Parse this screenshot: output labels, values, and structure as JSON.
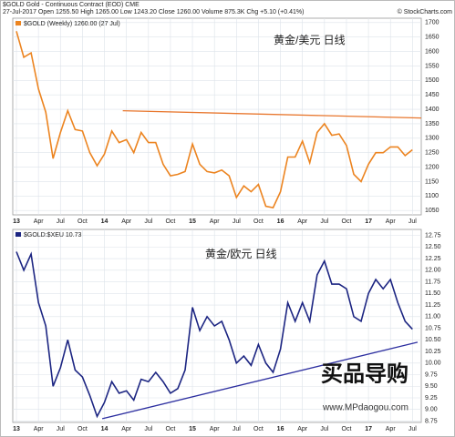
{
  "chart_data": [
    {
      "type": "line",
      "title": "$GOLD Gold - Continuous Contract (EOD) CME",
      "subtitle": "27-Jul-2017   Open 1255.50  High 1265.00  Low 1243.20  Close 1260.00  Volume 875.3K  Chg +5.10 (+0.41%)",
      "credit": "© StockCharts.com",
      "annotation": "黄金/美元   日线",
      "grid": true,
      "x": [
        0,
        1,
        2,
        3,
        4,
        5,
        6,
        7,
        8,
        9,
        10,
        11,
        12,
        13,
        14,
        15,
        16,
        17,
        18,
        19,
        20,
        21,
        22,
        23,
        24,
        25,
        26,
        27,
        28,
        29,
        30,
        31,
        32,
        33,
        34,
        35,
        36,
        37,
        38,
        39,
        40,
        41,
        42,
        43,
        44,
        45,
        46,
        47,
        48,
        49,
        50,
        51,
        52,
        53,
        54
      ],
      "series": [
        {
          "name": "$GOLD (Weekly) 1260.00 (27 Jul)",
          "color": "#ec8420",
          "values": [
            1670,
            1580,
            1595,
            1470,
            1390,
            1230,
            1320,
            1395,
            1330,
            1325,
            1250,
            1205,
            1245,
            1325,
            1285,
            1295,
            1250,
            1320,
            1285,
            1285,
            1210,
            1170,
            1175,
            1185,
            1280,
            1210,
            1185,
            1180,
            1190,
            1170,
            1095,
            1135,
            1115,
            1140,
            1065,
            1060,
            1115,
            1235,
            1235,
            1290,
            1215,
            1320,
            1350,
            1310,
            1315,
            1275,
            1175,
            1150,
            1210,
            1250,
            1250,
            1270,
            1270,
            1240,
            1260
          ]
        }
      ],
      "trendline": {
        "color": "#e8772e",
        "x": [
          14.5,
          55.2
        ],
        "values": [
          1395,
          1370
        ]
      },
      "xlim": [
        -0.5,
        55.2
      ],
      "ylim": [
        1035,
        1715
      ],
      "yticks": [
        1050,
        1100,
        1150,
        1200,
        1250,
        1300,
        1350,
        1400,
        1450,
        1500,
        1550,
        1600,
        1650,
        1700
      ],
      "xticks": [
        {
          "value": 0,
          "label": "13"
        },
        {
          "value": 3,
          "label": "Apr"
        },
        {
          "value": 6,
          "label": "Jul"
        },
        {
          "value": 9,
          "label": "Oct"
        },
        {
          "value": 12,
          "label": "14"
        },
        {
          "value": 15,
          "label": "Apr"
        },
        {
          "value": 18,
          "label": "Jul"
        },
        {
          "value": 21,
          "label": "Oct"
        },
        {
          "value": 24,
          "label": "15"
        },
        {
          "value": 27,
          "label": "Apr"
        },
        {
          "value": 30,
          "label": "Jul"
        },
        {
          "value": 33,
          "label": "Oct"
        },
        {
          "value": 36,
          "label": "16"
        },
        {
          "value": 39,
          "label": "Apr"
        },
        {
          "value": 42,
          "label": "Jul"
        },
        {
          "value": 45,
          "label": "Oct"
        },
        {
          "value": 48,
          "label": "17"
        },
        {
          "value": 51,
          "label": "Apr"
        },
        {
          "value": 54,
          "label": "Jul"
        }
      ]
    },
    {
      "type": "line",
      "annotation": "黄金/欧元   日线",
      "grid": true,
      "x": [
        0,
        1,
        2,
        3,
        4,
        5,
        6,
        7,
        8,
        9,
        10,
        11,
        12,
        13,
        14,
        15,
        16,
        17,
        18,
        19,
        20,
        21,
        22,
        23,
        24,
        25,
        26,
        27,
        28,
        29,
        30,
        31,
        32,
        33,
        34,
        35,
        36,
        37,
        38,
        39,
        40,
        41,
        42,
        43,
        44,
        45,
        46,
        47,
        48,
        49,
        50,
        51,
        52,
        53,
        54
      ],
      "series": [
        {
          "name": "$GOLD:$XEU 10.73",
          "color": "#1c2582",
          "values": [
            12.4,
            12.0,
            12.35,
            11.3,
            10.8,
            9.5,
            9.9,
            10.5,
            9.85,
            9.7,
            9.3,
            8.85,
            9.15,
            9.6,
            9.35,
            9.4,
            9.2,
            9.65,
            9.6,
            9.8,
            9.6,
            9.35,
            9.45,
            9.85,
            11.2,
            10.7,
            11.0,
            10.8,
            10.9,
            10.5,
            10.0,
            10.15,
            9.95,
            10.4,
            10.0,
            9.8,
            10.3,
            11.3,
            10.9,
            11.3,
            10.9,
            11.9,
            12.2,
            11.7,
            11.7,
            11.6,
            11.0,
            10.9,
            11.5,
            11.8,
            11.6,
            11.8,
            11.3,
            10.9,
            10.73
          ]
        }
      ],
      "trendline": {
        "color": "#2d2fa0",
        "x": [
          11.7,
          54.7
        ],
        "values": [
          8.8,
          10.45
        ]
      },
      "xlim": [
        -0.5,
        55.2
      ],
      "ylim": [
        8.72,
        12.88
      ],
      "yticks": [
        {
          "value": 8.75,
          "label": "8.75"
        },
        {
          "value": 9,
          "label": "9.00"
        },
        {
          "value": 9.25,
          "label": "9.25"
        },
        {
          "value": 9.5,
          "label": "9.50"
        },
        {
          "value": 9.75,
          "label": "9.75"
        },
        {
          "value": 10,
          "label": "10.00"
        },
        {
          "value": 10.25,
          "label": "10.25"
        },
        {
          "value": 10.5,
          "label": "10.50"
        },
        {
          "value": 10.75,
          "label": "10.75"
        },
        {
          "value": 11,
          "label": "11.00"
        },
        {
          "value": 11.25,
          "label": "11.25"
        },
        {
          "value": 11.5,
          "label": "11.50"
        },
        {
          "value": 11.75,
          "label": "11.75"
        },
        {
          "value": 12,
          "label": "12.00"
        },
        {
          "value": 12.25,
          "label": "12.25"
        },
        {
          "value": 12.5,
          "label": "12.50"
        },
        {
          "value": 12.75,
          "label": "12.75"
        }
      ],
      "xticks": [
        {
          "value": 0,
          "label": "13"
        },
        {
          "value": 3,
          "label": "Apr"
        },
        {
          "value": 6,
          "label": "Jul"
        },
        {
          "value": 9,
          "label": "Oct"
        },
        {
          "value": 12,
          "label": "14"
        },
        {
          "value": 15,
          "label": "Apr"
        },
        {
          "value": 18,
          "label": "Jul"
        },
        {
          "value": 21,
          "label": "Oct"
        },
        {
          "value": 24,
          "label": "15"
        },
        {
          "value": 27,
          "label": "Apr"
        },
        {
          "value": 30,
          "label": "Jul"
        },
        {
          "value": 33,
          "label": "Oct"
        },
        {
          "value": 36,
          "label": "16"
        },
        {
          "value": 39,
          "label": "Apr"
        },
        {
          "value": 42,
          "label": "Jul"
        },
        {
          "value": 45,
          "label": "Oct"
        },
        {
          "value": 48,
          "label": "17"
        },
        {
          "value": 51,
          "label": "Apr"
        },
        {
          "value": 54,
          "label": "Jul"
        }
      ]
    }
  ],
  "watermark": {
    "logo": "买品导购",
    "url": "www.MPdaogou.com"
  }
}
